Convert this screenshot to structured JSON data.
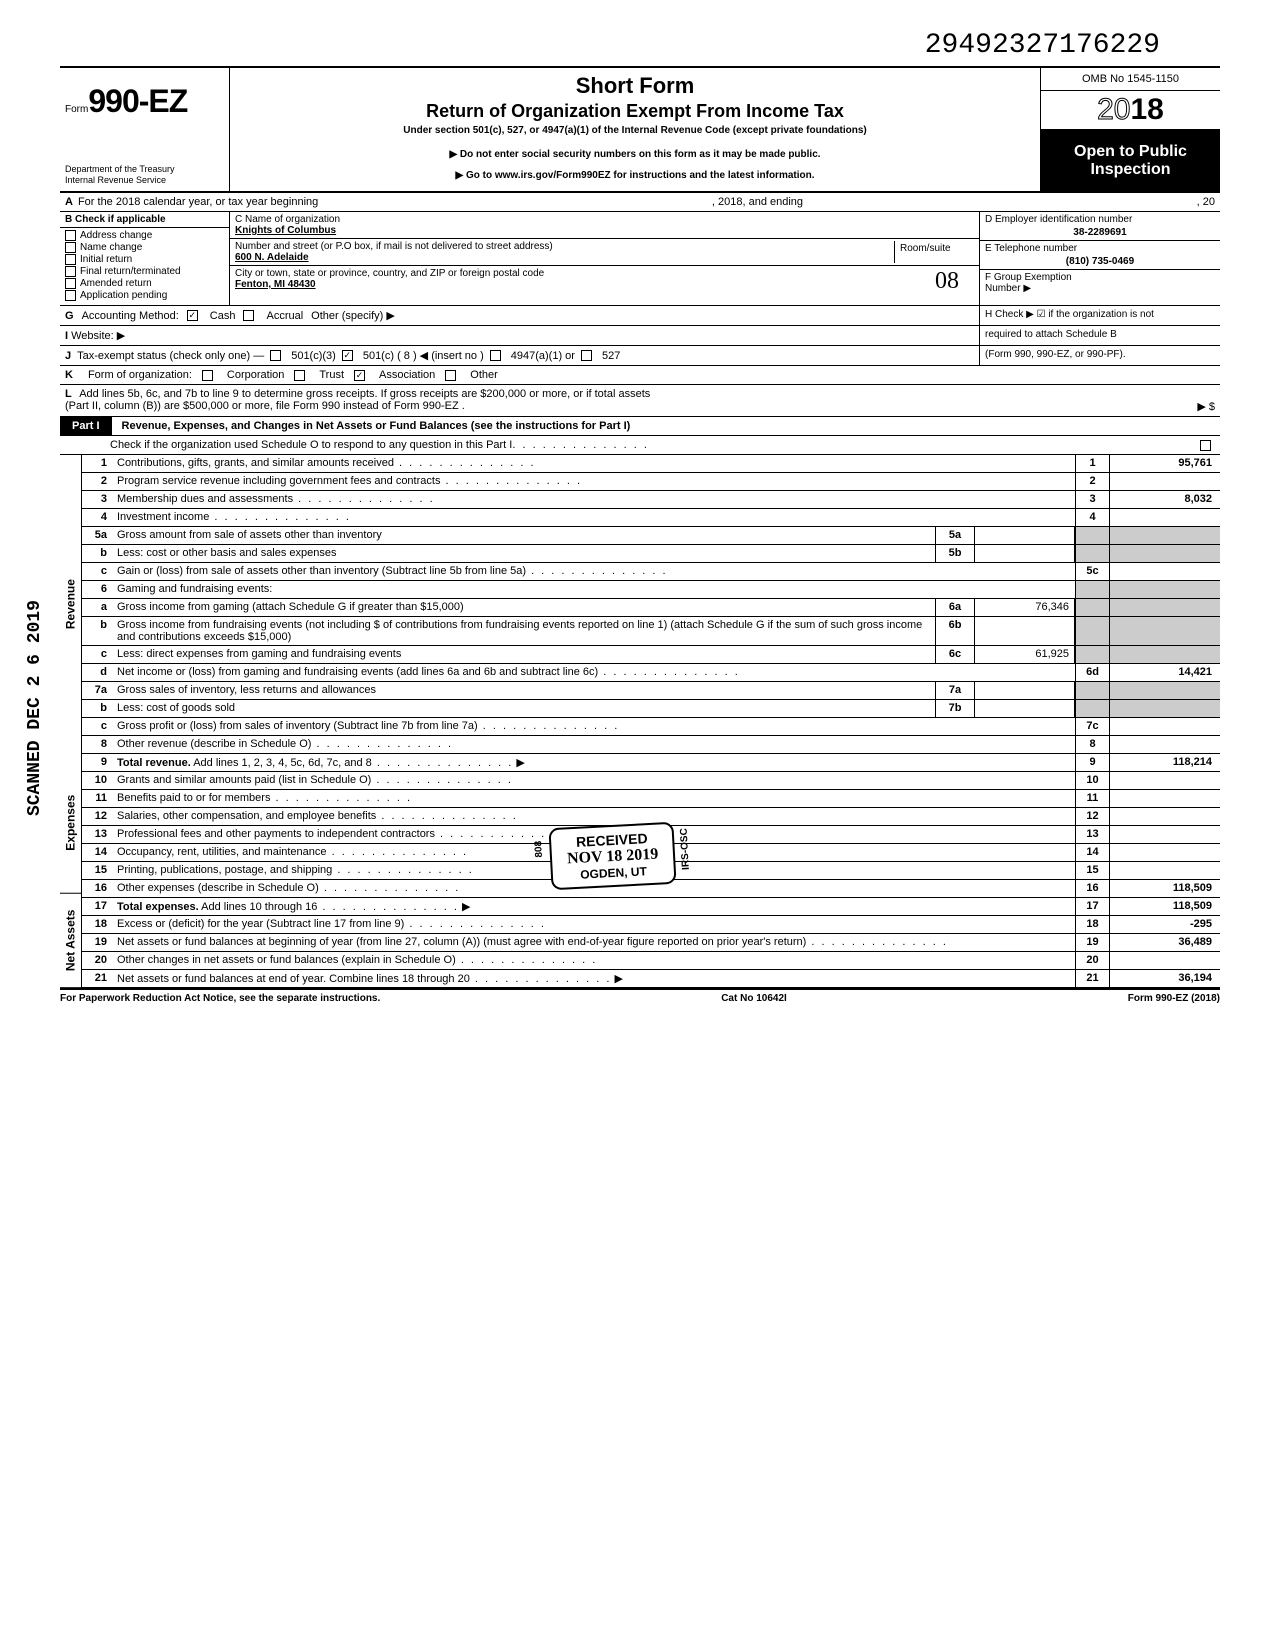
{
  "top_number": "29492327176229",
  "form": {
    "prefix": "Form",
    "number": "990-EZ",
    "dept1": "Department of the Treasury",
    "dept2": "Internal Revenue Service",
    "title1": "Short Form",
    "title2": "Return of Organization Exempt From Income Tax",
    "subtitle": "Under section 501(c), 527, or 4947(a)(1) of the Internal Revenue Code (except private foundations)",
    "note1": "▶ Do not enter social security numbers on this form as it may be made public.",
    "note2": "▶ Go to www.irs.gov/Form990EZ for instructions and the latest information.",
    "omb": "OMB No 1545-1150",
    "year_outline": "20",
    "year_bold": "18",
    "inspection1": "Open to Public",
    "inspection2": "Inspection"
  },
  "row_a": {
    "label_a": "A",
    "text": "For the 2018 calendar year, or tax year beginning",
    "mid": ", 2018, and ending",
    "end": ", 20"
  },
  "b": {
    "header": "B Check if applicable",
    "opts": [
      "Address change",
      "Name change",
      "Initial return",
      "Final return/terminated",
      "Amended return",
      "Application pending"
    ]
  },
  "c": {
    "name_label": "C Name of organization",
    "name": "Knights of Columbus",
    "street_label": "Number and street (or P.O  box, if mail is not delivered to street address)",
    "street": "600 N. Adelaide",
    "room_label": "Room/suite",
    "city_label": "City or town, state or province, country, and ZIP or foreign postal code",
    "city": "Fenton, MI 48430",
    "hand": "08"
  },
  "d": {
    "label": "D Employer identification number",
    "ein": "38-2289691",
    "e_label": "E Telephone number",
    "phone": "(810) 735-0469",
    "f_label": "F Group Exemption",
    "f_label2": "Number ▶"
  },
  "g": {
    "letter": "G",
    "label": "Accounting Method:",
    "cash": "Cash",
    "accrual": "Accrual",
    "other": "Other (specify) ▶"
  },
  "h": {
    "text": "H Check ▶ ☑ if the organization is not",
    "text2": "required to attach Schedule B",
    "text3": "(Form 990, 990-EZ, or 990-PF)."
  },
  "i": {
    "letter": "I",
    "label": "Website: ▶"
  },
  "j": {
    "letter": "J",
    "label": "Tax-exempt status (check only one) —",
    "o1": "501(c)(3)",
    "o2": "501(c) (  8  ) ◀ (insert no )",
    "o3": "4947(a)(1) or",
    "o4": "527"
  },
  "k": {
    "letter": "K",
    "label": "Form of organization:",
    "o1": "Corporation",
    "o2": "Trust",
    "o3": "Association",
    "o4": "Other"
  },
  "l": {
    "letter": "L",
    "text": "Add lines 5b, 6c, and 7b to line 9 to determine gross receipts. If gross receipts are $200,000 or more, or if total assets",
    "text2": "(Part II, column (B)) are $500,000 or more, file Form 990 instead of Form 990-EZ .",
    "arrow": "▶  $"
  },
  "part1": {
    "tab": "Part I",
    "title": "Revenue, Expenses, and Changes in Net Assets or Fund Balances (see the instructions for Part I)",
    "check": "Check if the organization used Schedule O to respond to any question in this Part I"
  },
  "sides": {
    "scanned": "SCANNED  DEC 2 6 2019",
    "revenue": "Revenue",
    "expenses": "Expenses",
    "netassets": "Net Assets"
  },
  "lines": [
    {
      "n": "1",
      "d": "Contributions, gifts, grants, and similar amounts received",
      "en": "1",
      "ev": "95,761"
    },
    {
      "n": "2",
      "d": "Program service revenue including government fees and contracts",
      "en": "2",
      "ev": ""
    },
    {
      "n": "3",
      "d": "Membership dues and assessments",
      "en": "3",
      "ev": "8,032"
    },
    {
      "n": "4",
      "d": "Investment income",
      "en": "4",
      "ev": ""
    },
    {
      "n": "5a",
      "d": "Gross amount from sale of assets other than inventory",
      "mn": "5a",
      "mv": "",
      "shade": true
    },
    {
      "n": "b",
      "d": "Less: cost or other basis and sales expenses",
      "mn": "5b",
      "mv": "",
      "shade": true
    },
    {
      "n": "c",
      "d": "Gain or (loss) from sale of assets other than inventory (Subtract line 5b from line 5a)",
      "en": "5c",
      "ev": ""
    },
    {
      "n": "6",
      "d": "Gaming and fundraising events:",
      "shade": true,
      "noend": true
    },
    {
      "n": "a",
      "d": "Gross income from gaming (attach Schedule G if greater than $15,000)",
      "mn": "6a",
      "mv": "76,346",
      "shade": true
    },
    {
      "n": "b",
      "d": "Gross income from fundraising events (not including  $                    of contributions from fundraising events reported on line 1) (attach Schedule G if the sum of such gross income and contributions exceeds $15,000)",
      "mn": "6b",
      "mv": "",
      "shade": true
    },
    {
      "n": "c",
      "d": "Less: direct expenses from gaming and fundraising events",
      "mn": "6c",
      "mv": "61,925",
      "shade": true
    },
    {
      "n": "d",
      "d": "Net income or (loss) from gaming and fundraising events (add lines 6a and 6b and subtract line 6c)",
      "en": "6d",
      "ev": "14,421"
    },
    {
      "n": "7a",
      "d": "Gross sales of inventory, less returns and allowances",
      "mn": "7a",
      "mv": "",
      "shade": true
    },
    {
      "n": "b",
      "d": "Less: cost of goods sold",
      "mn": "7b",
      "mv": "",
      "shade": true
    },
    {
      "n": "c",
      "d": "Gross profit or (loss) from sales of inventory (Subtract line 7b from line 7a)",
      "en": "7c",
      "ev": ""
    },
    {
      "n": "8",
      "d": "Other revenue (describe in Schedule O)",
      "en": "8",
      "ev": ""
    },
    {
      "n": "9",
      "d": "Total revenue. Add lines 1, 2, 3, 4, 5c, 6d, 7c, and 8",
      "en": "9",
      "ev": "118,214",
      "arrow": true,
      "bold": true
    },
    {
      "n": "10",
      "d": "Grants and similar amounts paid (list in Schedule O)",
      "en": "10",
      "ev": ""
    },
    {
      "n": "11",
      "d": "Benefits paid to or for members",
      "en": "11",
      "ev": ""
    },
    {
      "n": "12",
      "d": "Salaries, other compensation, and employee benefits",
      "en": "12",
      "ev": ""
    },
    {
      "n": "13",
      "d": "Professional fees and other payments to independent contractors",
      "en": "13",
      "ev": ""
    },
    {
      "n": "14",
      "d": "Occupancy, rent, utilities, and maintenance",
      "en": "14",
      "ev": ""
    },
    {
      "n": "15",
      "d": "Printing, publications, postage, and shipping",
      "en": "15",
      "ev": ""
    },
    {
      "n": "16",
      "d": "Other expenses (describe in Schedule O)",
      "en": "16",
      "ev": "118,509"
    },
    {
      "n": "17",
      "d": "Total expenses. Add lines 10 through 16",
      "en": "17",
      "ev": "118,509",
      "arrow": true,
      "bold": true
    },
    {
      "n": "18",
      "d": "Excess or (deficit) for the year (Subtract line 17 from line 9)",
      "en": "18",
      "ev": "-295"
    },
    {
      "n": "19",
      "d": "Net assets or fund balances at beginning of year (from line 27, column (A)) (must agree with end-of-year figure reported on prior year's return)",
      "en": "19",
      "ev": "36,489"
    },
    {
      "n": "20",
      "d": "Other changes in net assets or fund balances (explain in Schedule O)",
      "en": "20",
      "ev": ""
    },
    {
      "n": "21",
      "d": "Net assets or fund balances at end of year. Combine lines 18 through 20",
      "en": "21",
      "ev": "36,194",
      "arrow": true
    }
  ],
  "stamp": {
    "l1": "RECEIVED",
    "l2": "NOV 18 2019",
    "l3": "OGDEN, UT",
    "side_l": "808",
    "side_r": "IRS-OSC"
  },
  "footer": {
    "left": "For Paperwork Reduction Act Notice, see the separate instructions.",
    "mid": "Cat No 10642I",
    "right": "Form 990-EZ (2018)"
  }
}
